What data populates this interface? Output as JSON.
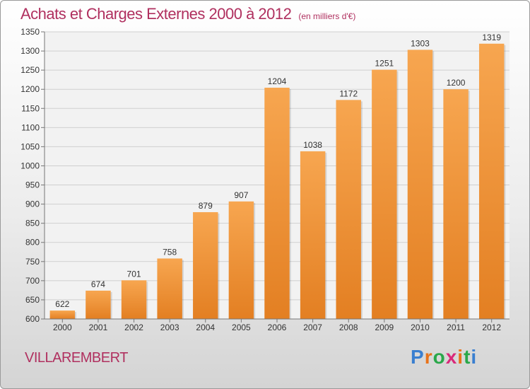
{
  "header": {
    "title": "Achats et Charges Externes 2000 à 2012",
    "subtitle": "(en milliers d'€)"
  },
  "footer": {
    "commune": "VILLAREMBERT",
    "logo": {
      "letters": [
        "P",
        "r",
        "o",
        "x",
        "i",
        "t",
        "i"
      ],
      "colors": [
        "#3a7fd0",
        "#e8731a",
        "#2aa84a",
        "#d92a7a",
        "#e8731a",
        "#2aa84a",
        "#3a7fd0"
      ]
    }
  },
  "colors": {
    "bar_light": "#f7a650",
    "bar_dark": "#e37f22",
    "grid": "#cfcfcf",
    "axis": "#777777"
  },
  "chart_data": {
    "type": "bar",
    "categories": [
      "2000",
      "2001",
      "2002",
      "2003",
      "2004",
      "2005",
      "2006",
      "2007",
      "2008",
      "2009",
      "2010",
      "2011",
      "2012"
    ],
    "values": [
      622,
      674,
      701,
      758,
      879,
      907,
      1204,
      1038,
      1172,
      1251,
      1303,
      1200,
      1319
    ],
    "ylim": [
      600,
      1350
    ],
    "yticks": [
      600,
      650,
      700,
      750,
      800,
      850,
      900,
      950,
      1000,
      1050,
      1100,
      1150,
      1200,
      1250,
      1300,
      1350
    ],
    "grid": true,
    "data_labels": true
  }
}
